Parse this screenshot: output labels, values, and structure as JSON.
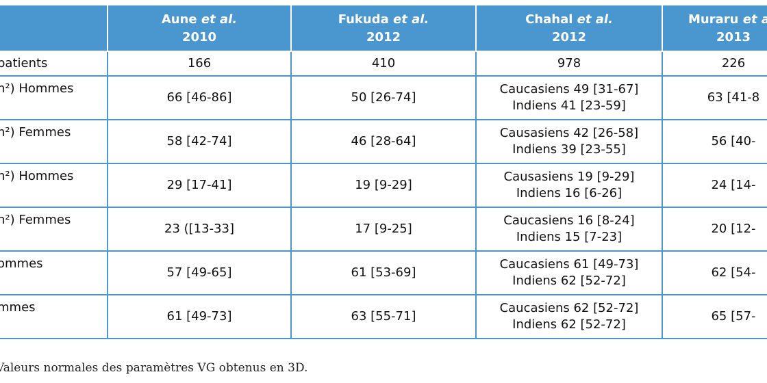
{
  "header": {
    "cols": [
      {
        "author": "Aune",
        "etal": "et al.",
        "year": "2010"
      },
      {
        "author": "Fukuda",
        "etal": "et al.",
        "year": "2012"
      },
      {
        "author": "Chahal",
        "etal": "et al.",
        "year": "2012"
      },
      {
        "author": "Muraru",
        "etal": "et al.",
        "year": "2013"
      }
    ]
  },
  "rows": [
    {
      "label": "patients",
      "cells": [
        [
          "166"
        ],
        [
          "410"
        ],
        [
          "978"
        ],
        [
          "226"
        ]
      ]
    },
    {
      "label": "n²) Hommes",
      "cells": [
        [
          "66 [46-86]"
        ],
        [
          "50 [26-74]"
        ],
        [
          "Caucasiens 49 [31-67]",
          "Indiens 41 [23-59]"
        ],
        [
          "63 [41-8"
        ]
      ]
    },
    {
      "label": "n²) Femmes",
      "cells": [
        [
          "58 [42-74]"
        ],
        [
          "46 [28-64]"
        ],
        [
          "Causasiens 42 [26-58]",
          "Indiens 39 [23-55]"
        ],
        [
          "56 [40-"
        ]
      ]
    },
    {
      "label": "n²) Hommes",
      "cells": [
        [
          "29 [17-41]"
        ],
        [
          "19 [9-29]"
        ],
        [
          "Causasiens 19 [9-29]",
          "Indiens 16 [6-26]"
        ],
        [
          "24 [14-"
        ]
      ]
    },
    {
      "label": "n²) Femmes",
      "cells": [
        [
          "23 ([13-33]"
        ],
        [
          "17 [9-25]"
        ],
        [
          "Caucasiens 16 [8-24]",
          "Indiens 15 [7-23]"
        ],
        [
          "20 [12-"
        ]
      ]
    },
    {
      "label": "ommes",
      "cells": [
        [
          "57 [49-65]"
        ],
        [
          "61 [53-69]"
        ],
        [
          "Caucasiens 61 [49-73]",
          "Indiens 62 [52-72]"
        ],
        [
          "62 [54-"
        ]
      ]
    },
    {
      "label": "mmes",
      "cells": [
        [
          "61 [49-73]"
        ],
        [
          "63 [55-71]"
        ],
        [
          "Caucasiens 62 [52-72]",
          "Indiens 62 [52-72]"
        ],
        [
          "65 [57-"
        ]
      ]
    }
  ],
  "caption": "Valeurs normales des paramètres VG obtenus en 3D.",
  "colors": {
    "header_bg": "#4a96cf",
    "border": "#4a96cf"
  }
}
